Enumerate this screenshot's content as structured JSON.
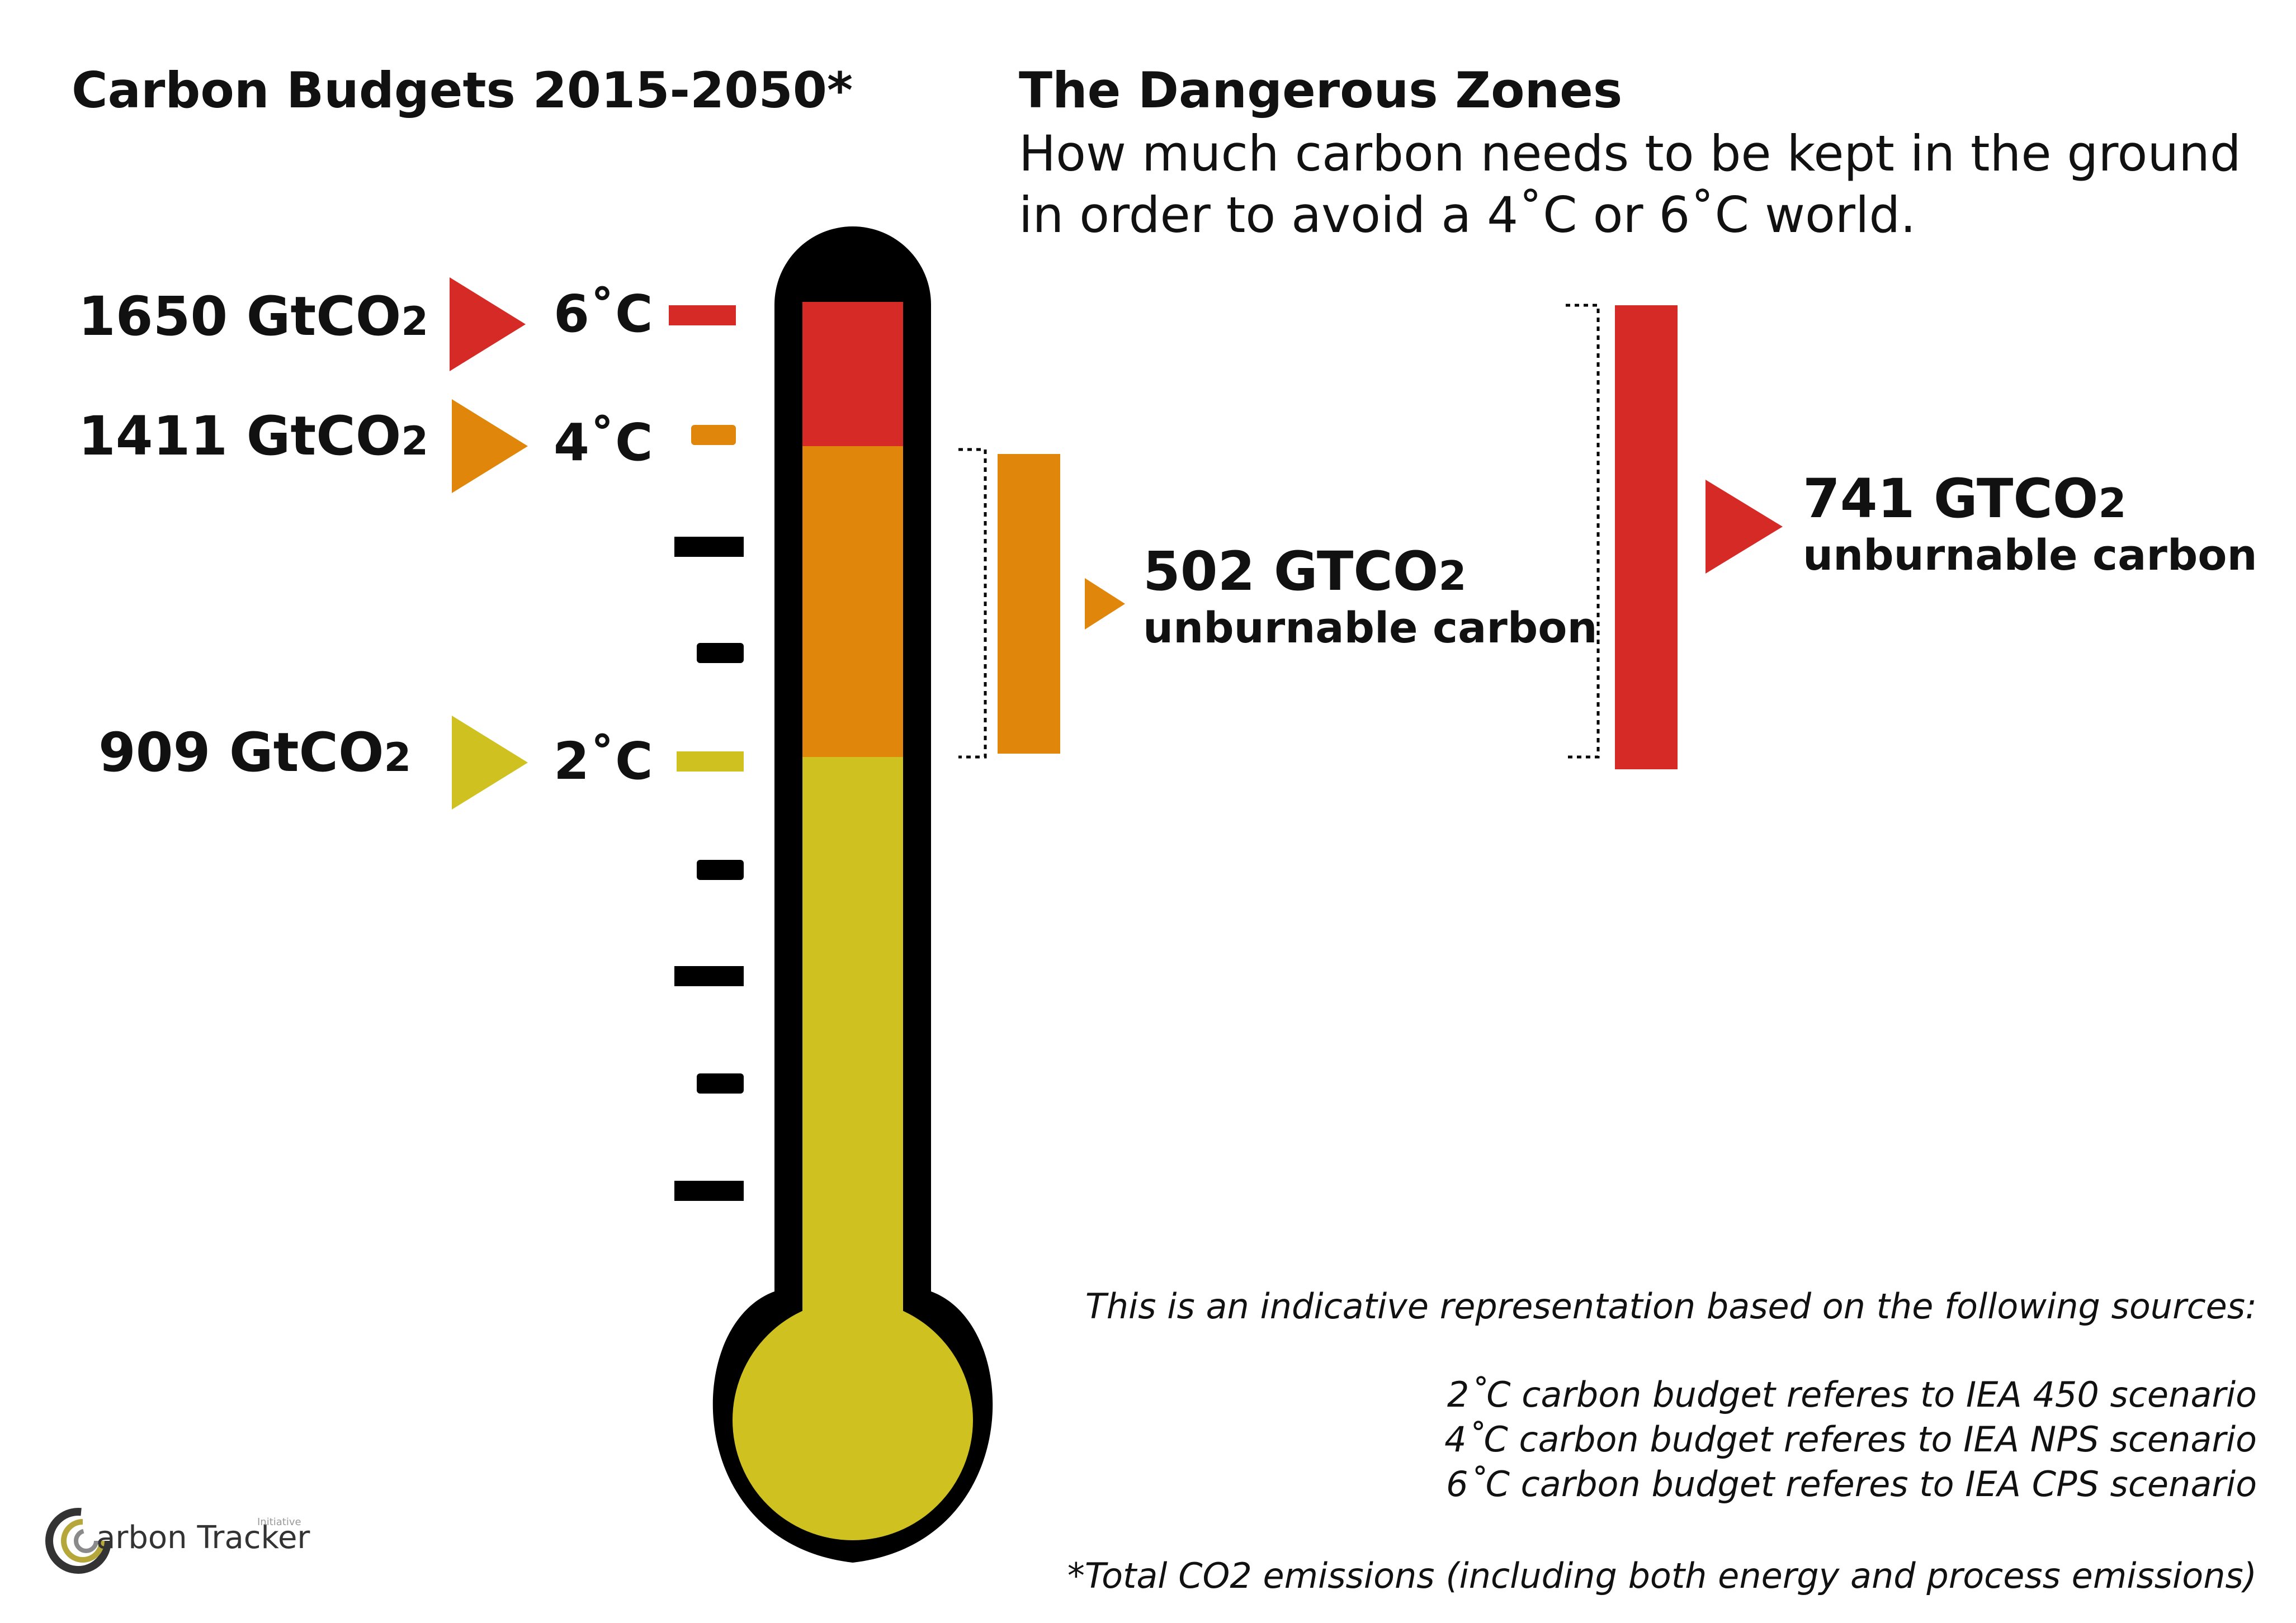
{
  "left_title": "Carbon Budgets 2015-2050*",
  "right_title": "The Dangerous Zones",
  "subtitle_line1": "How much carbon needs to be kept in the ground",
  "subtitle_line2": "in order to avoid a 4˚C or 6˚C world.",
  "budgets": [
    {
      "value": "1650 GtCO",
      "sub": "2",
      "temp": "6˚C",
      "color": "#d62a27"
    },
    {
      "value": "1411 GtCO",
      "sub": "2",
      "temp": "4˚C",
      "color": "#e0860b"
    },
    {
      "value": "909 GtCO",
      "sub": "2",
      "temp": "2˚C",
      "color": "#cfc11f"
    }
  ],
  "unburnable": [
    {
      "value": "502 GTCO",
      "sub": "2",
      "label": "unburnable carbon",
      "color": "#e0860b"
    },
    {
      "value": "741 GTCO",
      "sub": "2",
      "label": "unburnable carbon",
      "color": "#d62a27"
    }
  ],
  "notes": {
    "intro": "This is an indicative representation based on the following sources:",
    "line1": "2˚C carbon budget referes to IEA 450 scenario",
    "line2": "4˚C carbon budget referes to IEA NPS scenario",
    "line3": "6˚C carbon budget referes to IEA CPS scenario",
    "footnote": "*Total CO2 emissions (including both energy and process emissions)"
  },
  "logo": {
    "text": "arbon Tracker",
    "small": "Initiative"
  },
  "colors": {
    "red": "#d62a27",
    "orange": "#e0860b",
    "yellow": "#cfc11f",
    "black": "#000000"
  }
}
